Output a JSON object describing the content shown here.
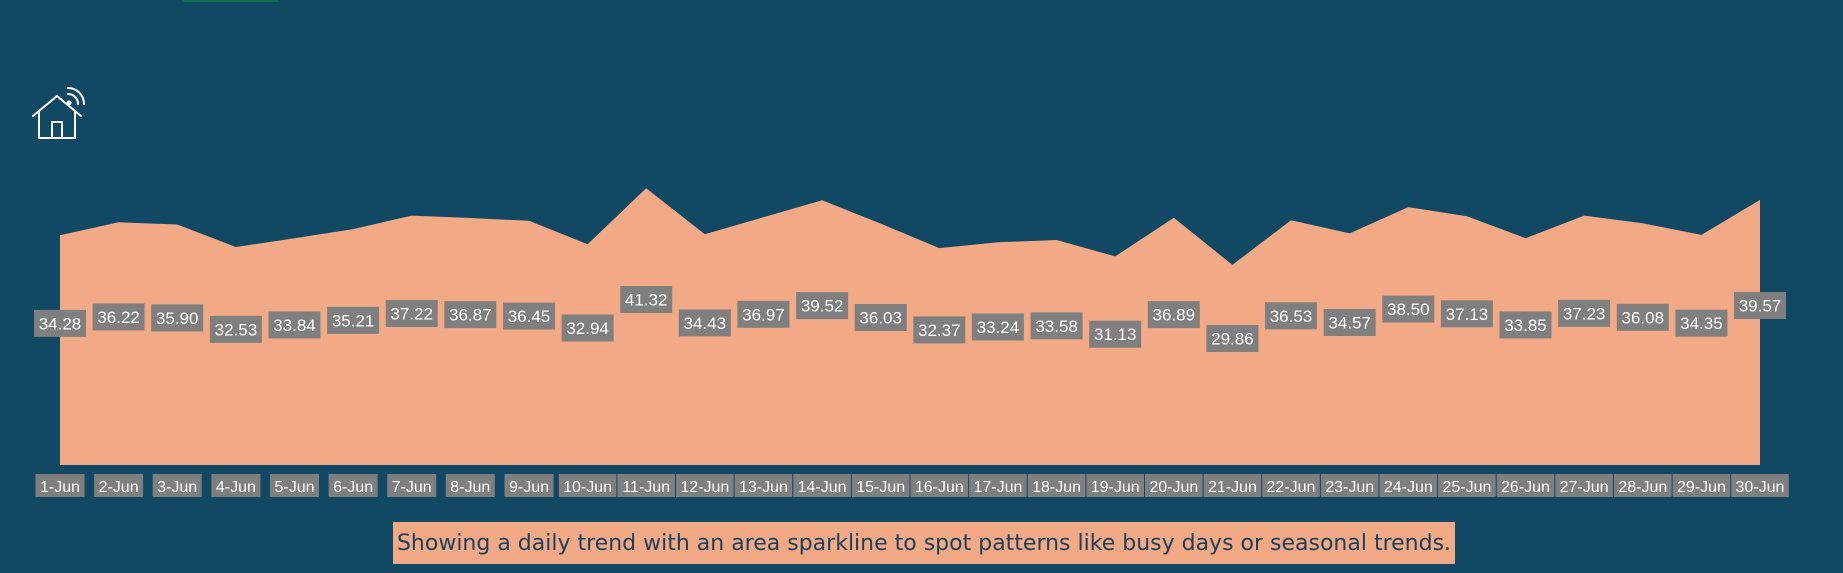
{
  "colors": {
    "background": "#114964",
    "area_fill": "#f1a986",
    "label_box": "#7f7f7f",
    "label_text": "#ffffff",
    "caption_text": "#1c3f5a"
  },
  "icon": {
    "name": "smart-home-icon"
  },
  "chart_data": {
    "type": "area",
    "title": "",
    "xlabel": "",
    "ylabel": "",
    "ylim": [
      0,
      45
    ],
    "grid": false,
    "legend": "none",
    "categories": [
      "1-Jun",
      "2-Jun",
      "3-Jun",
      "4-Jun",
      "5-Jun",
      "6-Jun",
      "7-Jun",
      "8-Jun",
      "9-Jun",
      "10-Jun",
      "11-Jun",
      "12-Jun",
      "13-Jun",
      "14-Jun",
      "15-Jun",
      "16-Jun",
      "17-Jun",
      "18-Jun",
      "19-Jun",
      "20-Jun",
      "21-Jun",
      "22-Jun",
      "23-Jun",
      "24-Jun",
      "25-Jun",
      "26-Jun",
      "27-Jun",
      "28-Jun",
      "29-Jun",
      "30-Jun"
    ],
    "values": [
      34.28,
      36.22,
      35.9,
      32.53,
      33.84,
      35.21,
      37.22,
      36.87,
      36.45,
      32.94,
      41.32,
      34.43,
      36.97,
      39.52,
      36.03,
      32.37,
      33.24,
      33.58,
      31.13,
      36.89,
      29.86,
      36.53,
      34.57,
      38.5,
      37.13,
      33.85,
      37.23,
      36.08,
      34.35,
      39.57
    ],
    "data_labels": [
      "34.28",
      "36.22",
      "35.90",
      "32.53",
      "33.84",
      "35.21",
      "37.22",
      "36.87",
      "36.45",
      "32.94",
      "41.32",
      "34.43",
      "36.97",
      "39.52",
      "36.03",
      "32.37",
      "33.24",
      "33.58",
      "31.13",
      "36.89",
      "29.86",
      "36.53",
      "34.57",
      "38.50",
      "37.13",
      "33.85",
      "37.23",
      "36.08",
      "34.35",
      "39.57"
    ]
  },
  "caption": "Showing a daily trend with an area sparkline to spot patterns like busy days or seasonal trends."
}
